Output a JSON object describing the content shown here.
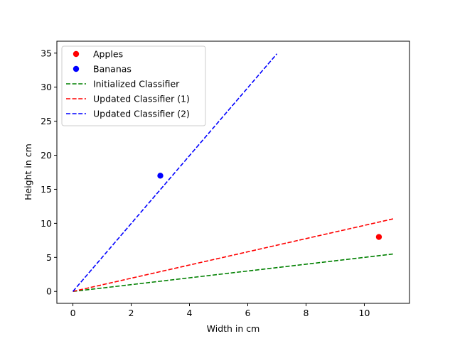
{
  "chart_data": {
    "type": "scatter",
    "xlabel": "Width in cm",
    "ylabel": "Height in cm",
    "xlim": [
      -0.55,
      11.55
    ],
    "ylim": [
      -1.75,
      36.75
    ],
    "xticks": [
      0,
      2,
      4,
      6,
      8,
      10
    ],
    "yticks": [
      0,
      5,
      10,
      15,
      20,
      25,
      30,
      35
    ],
    "grid": false,
    "legend_position": "top-left",
    "points": [
      {
        "name": "Apples",
        "color": "#ff0000",
        "x": [
          10.5
        ],
        "y": [
          8
        ]
      },
      {
        "name": "Bananas",
        "color": "#0000ff",
        "x": [
          3
        ],
        "y": [
          17
        ]
      }
    ],
    "lines": [
      {
        "name": "Initialized Classifier",
        "color": "#008000",
        "style": "dashed",
        "x": [
          0,
          11
        ],
        "y": [
          0,
          5.5
        ]
      },
      {
        "name": "Updated Classifier (1)",
        "color": "#ff0000",
        "style": "dashed",
        "x": [
          0,
          11
        ],
        "y": [
          0,
          10.67
        ]
      },
      {
        "name": "Updated Classifier (2)",
        "color": "#0000ff",
        "style": "dashed",
        "x": [
          0,
          7
        ],
        "y": [
          0,
          34.9
        ]
      }
    ]
  }
}
